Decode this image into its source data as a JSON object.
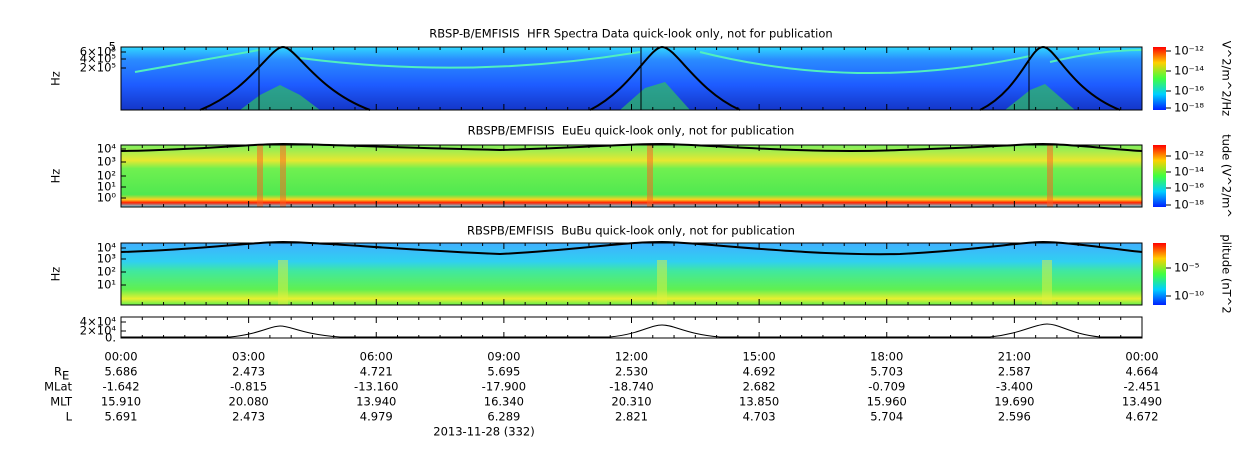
{
  "panels": [
    {
      "title": "RBSP-B/EMFISIS  HFR Spectra Data quick-look only, not for publication",
      "ylabel": "Hz",
      "yticks": [
        "5",
        "6×10⁵",
        "4×10⁵",
        "2×10⁵"
      ],
      "colorbar_ticks": [
        "10⁻¹²",
        "10⁻¹⁴",
        "10⁻¹⁶",
        "10⁻¹⁸"
      ],
      "colorbar_label": "V^2/m^2/Hz"
    },
    {
      "title": "RBSPB/EMFISIS  EuEu quick-look only, not for publication",
      "ylabel": "Hz",
      "yticks": [
        "10⁴",
        "10³",
        "10²",
        "10¹",
        "10⁰"
      ],
      "colorbar_ticks": [
        "10⁻¹²",
        "10⁻¹⁴",
        "10⁻¹⁶",
        "10⁻¹⁸"
      ],
      "colorbar_label": "tude (V^2/m^"
    },
    {
      "title": "RBSPB/EMFISIS  BuBu quick-look only, not for publication",
      "ylabel": "Hz",
      "yticks": [
        "10⁴",
        "10³",
        "10²",
        "10¹"
      ],
      "colorbar_ticks": [
        "10⁻⁵",
        "10⁻¹⁰"
      ],
      "colorbar_label": "plitude (nT^2"
    },
    {
      "yticks": [
        "4×10⁴",
        "2×10⁴",
        "0."
      ]
    }
  ],
  "time_labels": [
    "00:00",
    "03:00",
    "06:00",
    "09:00",
    "12:00",
    "15:00",
    "18:00",
    "21:00",
    "00:00"
  ],
  "ephemeris": [
    {
      "label": "R",
      "sub": "E",
      "values": [
        "5.686",
        "2.473",
        "4.721",
        "5.695",
        "2.530",
        "4.692",
        "5.703",
        "2.587",
        "4.664"
      ]
    },
    {
      "label": "MLat",
      "values": [
        "-1.642",
        "-0.815",
        "-13.160",
        "-17.900",
        "-18.740",
        "2.682",
        "-0.709",
        "-3.400",
        "-2.451"
      ]
    },
    {
      "label": "MLT",
      "values": [
        "15.910",
        "20.080",
        "13.940",
        "16.340",
        "20.310",
        "13.850",
        "15.960",
        "19.690",
        "13.490"
      ]
    },
    {
      "label": "L",
      "values": [
        "5.691",
        "2.473",
        "4.979",
        "6.289",
        "2.821",
        "4.703",
        "5.704",
        "2.596",
        "4.672"
      ]
    }
  ],
  "date": "2013-11-28 (332)"
}
